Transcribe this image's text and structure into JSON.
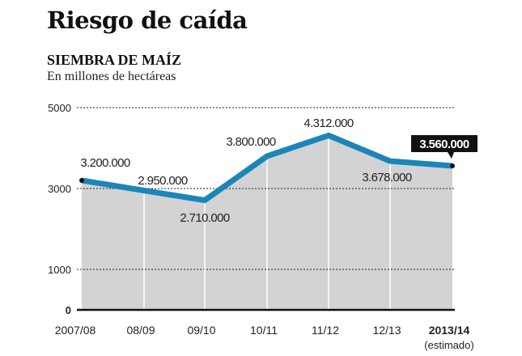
{
  "title": "Riesgo de caída",
  "subtitle": "SIEMBRA DE MAÍZ",
  "unit": "En millones de hectáreas",
  "colors": {
    "line": "#1a86b8",
    "area": "#d3d3d3",
    "badge": "#111111"
  },
  "chart_data": {
    "type": "area",
    "title": "SIEMBRA DE MAÍZ",
    "ylabel": "En millones de hectáreas",
    "categories": [
      "2007/08",
      "08/09",
      "09/10",
      "10/11",
      "11/12",
      "12/13",
      "2013/14"
    ],
    "category_note": "(estimado)",
    "values": [
      3200000,
      2950000,
      2710000,
      3800000,
      4312000,
      3678000,
      3560000
    ],
    "labels": [
      "3.200.000",
      "2.950.000",
      "2.710.000",
      "3.800.000",
      "4.312.000",
      "3.678.000",
      "3.560.000"
    ],
    "yticks": [
      0,
      1000,
      3000,
      5000
    ],
    "ytick_labels": [
      "0",
      "1000",
      "3000",
      "5000"
    ],
    "ylim": [
      0,
      5000
    ],
    "highlight_index": 6,
    "grid": "dotted"
  }
}
